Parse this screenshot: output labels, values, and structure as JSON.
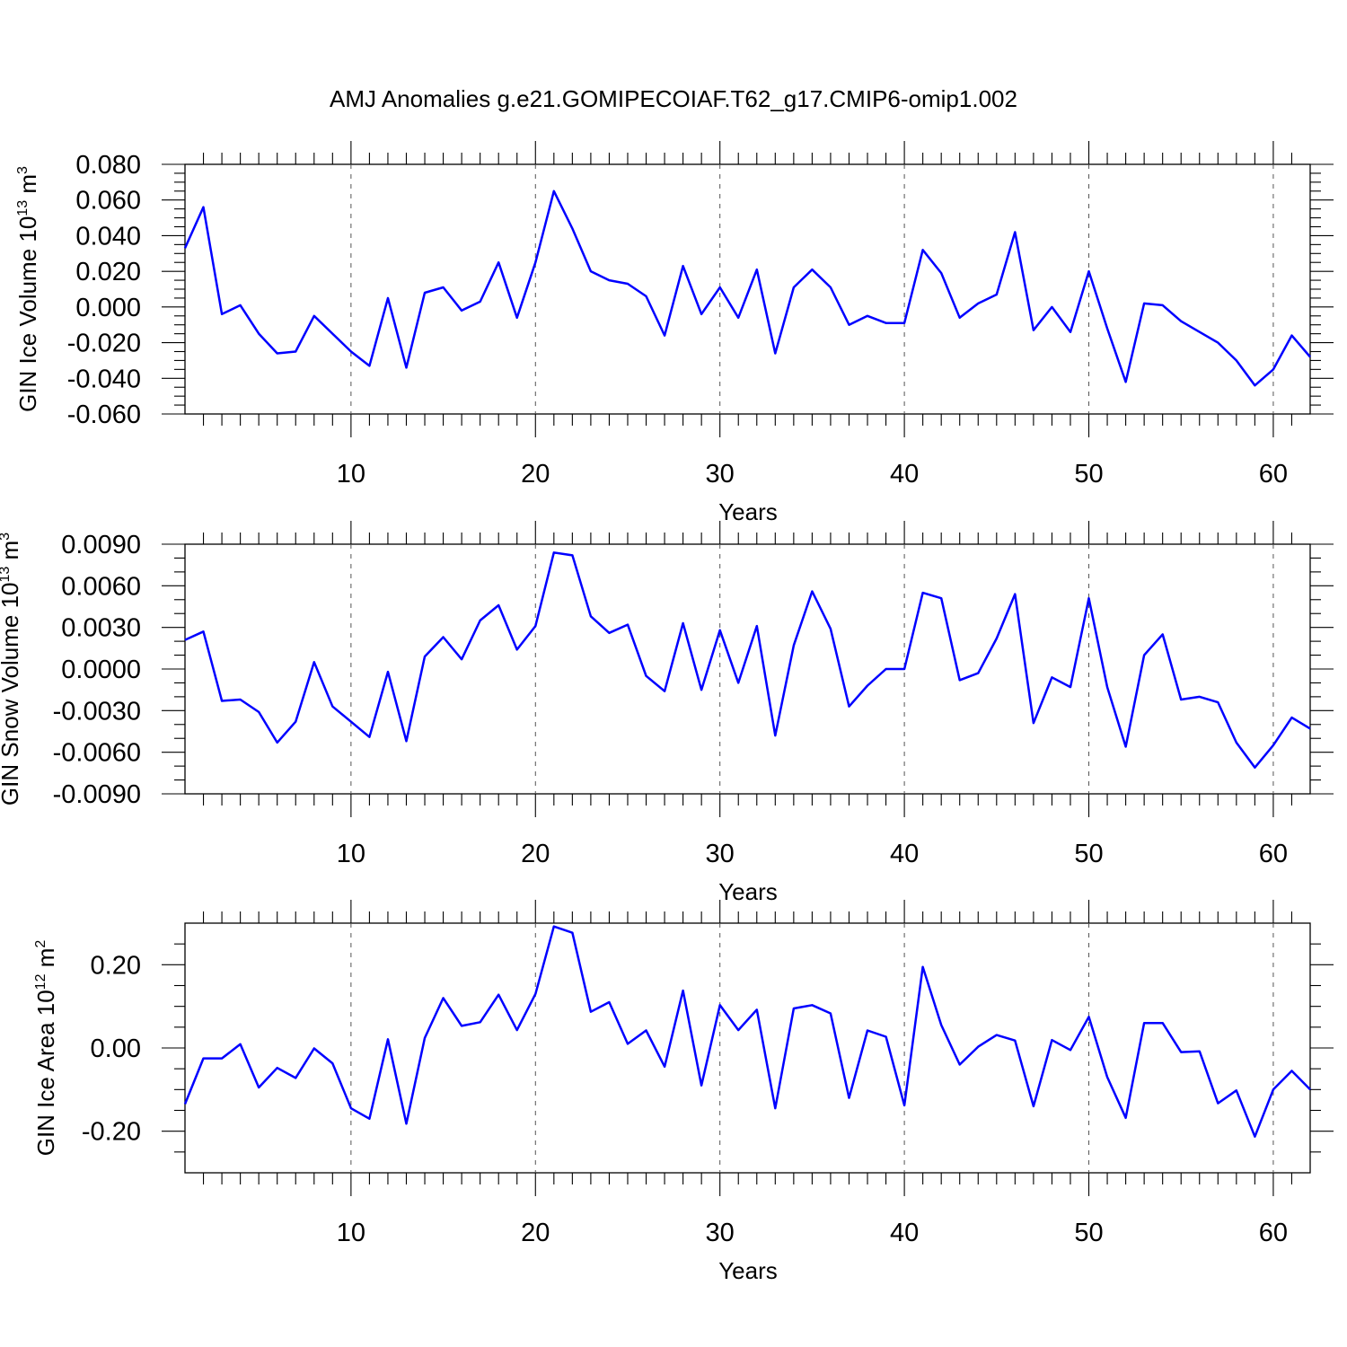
{
  "figure": {
    "title": "AMJ Anomalies g.e21.GOMIPECOIAF.T62_g17.CMIP6-omip1.002"
  },
  "colors": {
    "line": "#0000ff",
    "grid": "#555555",
    "frame": "#000000"
  },
  "chart_data": [
    {
      "type": "line",
      "title": "",
      "xlabel": "Years",
      "ylabel_main": "GIN Ice Volume 10",
      "ylabel_exp": "13",
      "ylabel_unit": " m",
      "ylabel_unit_exp": "3",
      "xlim": [
        1,
        62
      ],
      "ylim": [
        -0.06,
        0.08
      ],
      "x_ticks": [
        10,
        20,
        30,
        40,
        50,
        60
      ],
      "x_tick_labels": [
        "10",
        "20",
        "30",
        "40",
        "50",
        "60"
      ],
      "y_ticks": [
        -0.06,
        -0.04,
        -0.02,
        0.0,
        0.02,
        0.04,
        0.06,
        0.08
      ],
      "y_tick_labels": [
        "-0.060",
        "-0.040",
        "-0.020",
        "0.000",
        "0.020",
        "0.040",
        "0.060",
        "0.080"
      ],
      "y_minor_step": 0.005,
      "grid": "vertical dashed at major x ticks",
      "series": [
        {
          "x_start": 1,
          "values": [
            0.033,
            0.056,
            -0.004,
            0.001,
            -0.015,
            -0.026,
            -0.025,
            -0.005,
            -0.015,
            -0.025,
            -0.033,
            0.005,
            -0.034,
            0.008,
            0.011,
            -0.002,
            0.003,
            0.025,
            -0.006,
            0.025,
            0.065,
            0.044,
            0.02,
            0.015,
            0.013,
            0.006,
            -0.016,
            0.023,
            -0.004,
            0.011,
            -0.006,
            0.021,
            -0.026,
            0.011,
            0.021,
            0.011,
            -0.01,
            -0.005,
            -0.009,
            -0.009,
            0.032,
            0.019,
            -0.006,
            0.002,
            0.007,
            0.042,
            -0.013,
            0.0,
            -0.014,
            0.02,
            -0.012,
            -0.042,
            0.002,
            0.001,
            -0.008,
            -0.014,
            -0.02,
            -0.03,
            -0.044,
            -0.035,
            -0.016,
            -0.028
          ]
        }
      ]
    },
    {
      "type": "line",
      "title": "",
      "xlabel": "Years",
      "ylabel_main": "GIN Snow Volume 10",
      "ylabel_exp": "13",
      "ylabel_unit": " m",
      "ylabel_unit_exp": "3",
      "xlim": [
        1,
        62
      ],
      "ylim": [
        -0.009,
        0.009
      ],
      "x_ticks": [
        10,
        20,
        30,
        40,
        50,
        60
      ],
      "x_tick_labels": [
        "10",
        "20",
        "30",
        "40",
        "50",
        "60"
      ],
      "y_ticks": [
        -0.009,
        -0.006,
        -0.003,
        0.0,
        0.003,
        0.006,
        0.009
      ],
      "y_tick_labels": [
        "-0.0090",
        "-0.0060",
        "-0.0030",
        "0.0000",
        "0.0030",
        "0.0060",
        "0.0090"
      ],
      "y_minor_step": 0.001,
      "grid": "vertical dashed at major x ticks",
      "series": [
        {
          "x_start": 1,
          "values": [
            0.0021,
            0.0027,
            -0.0023,
            -0.0022,
            -0.0031,
            -0.0053,
            -0.0038,
            0.0005,
            -0.0027,
            -0.0038,
            -0.0049,
            -0.0002,
            -0.0052,
            0.0009,
            0.0023,
            0.0007,
            0.0035,
            0.0046,
            0.0014,
            0.0031,
            0.0084,
            0.0082,
            0.0038,
            0.0026,
            0.0032,
            -0.0005,
            -0.0016,
            0.0033,
            -0.0015,
            0.0028,
            -0.001,
            0.0031,
            -0.0048,
            0.0017,
            0.0056,
            0.0029,
            -0.0027,
            -0.0012,
            0.0,
            0.0,
            0.0055,
            0.0051,
            -0.0008,
            -0.0003,
            0.0022,
            0.0054,
            -0.0039,
            -0.0006,
            -0.0013,
            0.0051,
            -0.0013,
            -0.0056,
            0.001,
            0.0025,
            -0.0022,
            -0.002,
            -0.0024,
            -0.0053,
            -0.0071,
            -0.0055,
            -0.0035,
            -0.0043
          ]
        }
      ]
    },
    {
      "type": "line",
      "title": "",
      "xlabel": "Years",
      "ylabel_main": "GIN Ice Area 10",
      "ylabel_exp": "12",
      "ylabel_unit": " m",
      "ylabel_unit_exp": "2",
      "xlim": [
        1,
        62
      ],
      "ylim": [
        -0.3,
        0.3
      ],
      "x_ticks": [
        10,
        20,
        30,
        40,
        50,
        60
      ],
      "x_tick_labels": [
        "10",
        "20",
        "30",
        "40",
        "50",
        "60"
      ],
      "y_ticks": [
        -0.2,
        0.0,
        0.2
      ],
      "y_tick_labels": [
        "-0.20",
        "0.00",
        "0.20"
      ],
      "y_minor_step": 0.05,
      "grid": "vertical dashed at major x ticks",
      "series": [
        {
          "x_start": 1,
          "values": [
            -0.135,
            -0.025,
            -0.025,
            0.009,
            -0.095,
            -0.048,
            -0.072,
            -0.001,
            -0.037,
            -0.145,
            -0.17,
            0.021,
            -0.182,
            0.024,
            0.12,
            0.053,
            0.062,
            0.128,
            0.043,
            0.13,
            0.292,
            0.277,
            0.087,
            0.11,
            0.01,
            0.042,
            -0.045,
            0.138,
            -0.09,
            0.103,
            0.043,
            0.092,
            -0.145,
            0.095,
            0.103,
            0.083,
            -0.12,
            0.042,
            0.027,
            -0.138,
            0.195,
            0.055,
            -0.04,
            0.003,
            0.031,
            0.018,
            -0.14,
            0.019,
            -0.005,
            0.075,
            -0.07,
            -0.168,
            0.06,
            0.06,
            -0.01,
            -0.008,
            -0.133,
            -0.102,
            -0.213,
            -0.1,
            -0.055,
            -0.1
          ]
        }
      ]
    }
  ]
}
